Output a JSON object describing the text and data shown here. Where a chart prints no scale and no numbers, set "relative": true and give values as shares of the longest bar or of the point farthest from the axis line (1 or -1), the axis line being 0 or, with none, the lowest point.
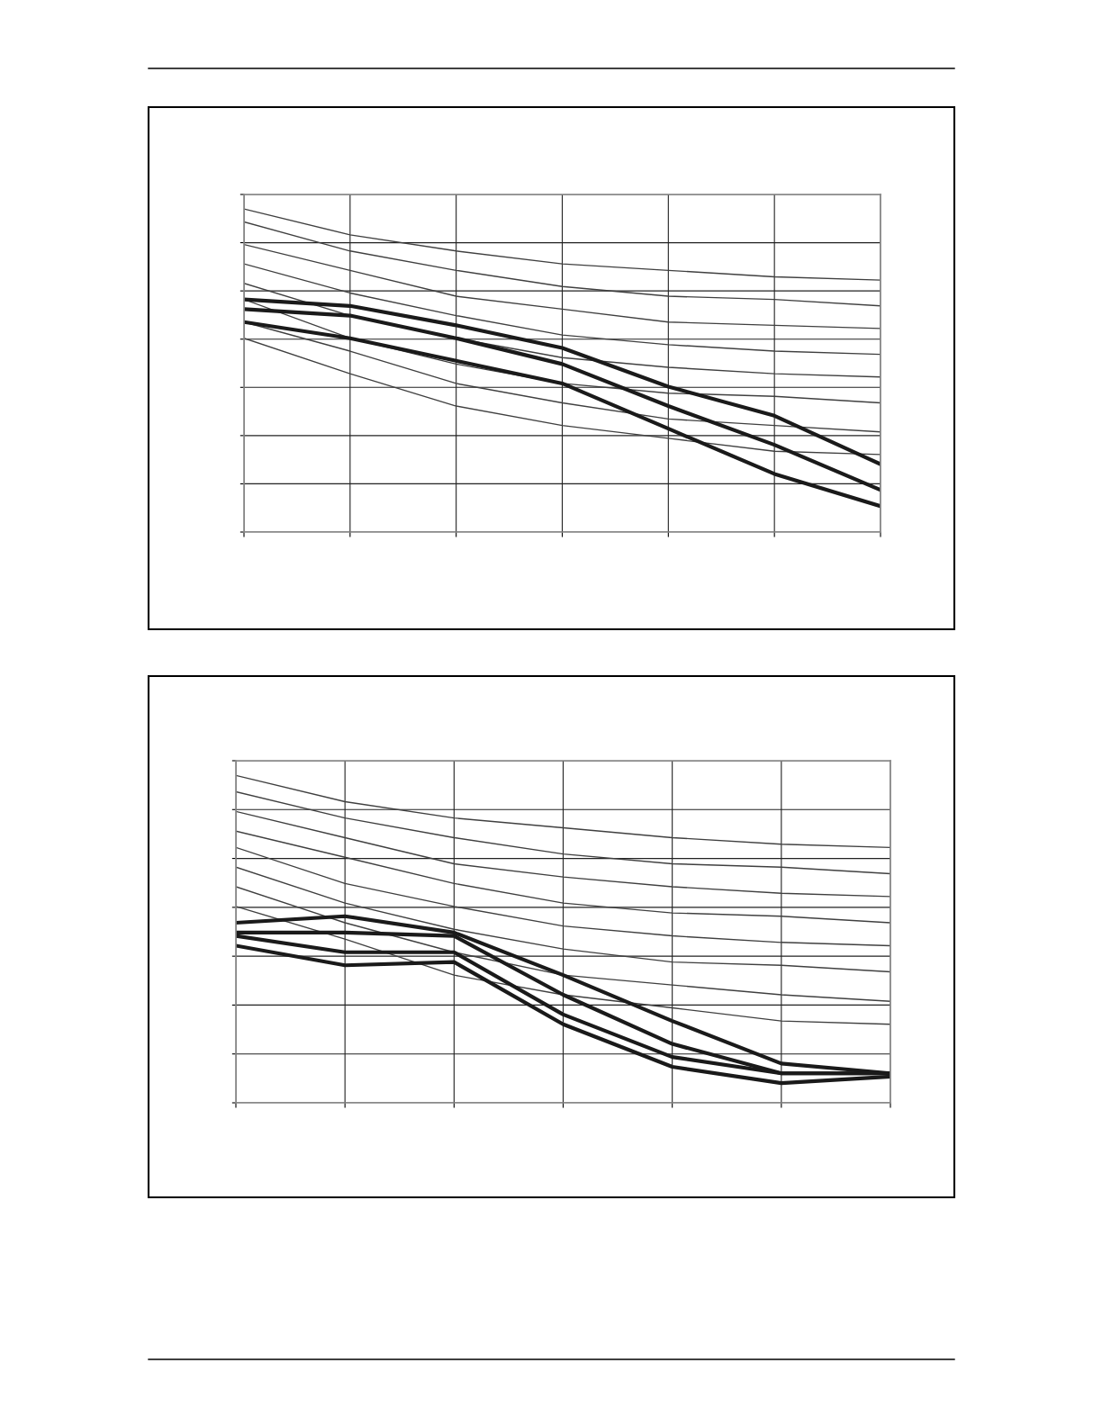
{
  "chart_data": [
    {
      "type": "line",
      "relative": true,
      "grid": true,
      "marker": "none",
      "line_style": "solid",
      "categories": [
        null,
        null,
        null,
        null,
        null,
        null,
        null
      ],
      "series": [
        {
          "color": "#404040",
          "values": [
            1.0,
            0.92,
            0.87,
            0.83,
            0.81,
            0.79,
            0.78
          ]
        },
        {
          "color": "#404040",
          "values": [
            0.96,
            0.87,
            0.81,
            0.76,
            0.73,
            0.72,
            0.7
          ]
        },
        {
          "color": "#404040",
          "values": [
            0.89,
            0.81,
            0.73,
            0.69,
            0.65,
            0.64,
            0.63
          ]
        },
        {
          "color": "#404040",
          "values": [
            0.83,
            0.74,
            0.67,
            0.61,
            0.58,
            0.56,
            0.55
          ]
        },
        {
          "color": "#404040",
          "values": [
            0.77,
            0.67,
            0.6,
            0.54,
            0.51,
            0.49,
            0.48
          ]
        },
        {
          "color": "#404040",
          "values": [
            0.72,
            0.6,
            0.52,
            0.46,
            0.43,
            0.42,
            0.4
          ]
        },
        {
          "color": "#404040",
          "values": [
            0.65,
            0.56,
            0.46,
            0.4,
            0.35,
            0.33,
            0.31
          ]
        },
        {
          "color": "#404040",
          "values": [
            0.6,
            0.49,
            0.39,
            0.33,
            0.29,
            0.25,
            0.24
          ]
        },
        {
          "color": "#1a1a1a",
          "values": [
            0.72,
            0.7,
            0.64,
            0.57,
            0.45,
            0.36,
            0.21
          ]
        },
        {
          "color": "#1a1a1a",
          "values": [
            0.69,
            0.67,
            0.6,
            0.52,
            0.39,
            0.27,
            0.13
          ]
        },
        {
          "color": "#1a1a1a",
          "values": [
            0.65,
            0.6,
            0.53,
            0.46,
            0.32,
            0.18,
            0.08
          ]
        }
      ]
    },
    {
      "type": "line",
      "relative": true,
      "grid": true,
      "marker": "none",
      "line_style": "solid",
      "categories": [
        null,
        null,
        null,
        null,
        null,
        null,
        null
      ],
      "series": [
        {
          "color": "#404040",
          "values": [
            1.0,
            0.92,
            0.87,
            0.84,
            0.81,
            0.79,
            0.78
          ]
        },
        {
          "color": "#404040",
          "values": [
            0.95,
            0.87,
            0.81,
            0.76,
            0.73,
            0.72,
            0.7
          ]
        },
        {
          "color": "#404040",
          "values": [
            0.89,
            0.81,
            0.73,
            0.69,
            0.66,
            0.64,
            0.63
          ]
        },
        {
          "color": "#404040",
          "values": [
            0.83,
            0.75,
            0.67,
            0.61,
            0.58,
            0.57,
            0.55
          ]
        },
        {
          "color": "#404040",
          "values": [
            0.78,
            0.67,
            0.6,
            0.54,
            0.51,
            0.49,
            0.48
          ]
        },
        {
          "color": "#404040",
          "values": [
            0.72,
            0.61,
            0.53,
            0.47,
            0.43,
            0.42,
            0.4
          ]
        },
        {
          "color": "#404040",
          "values": [
            0.66,
            0.55,
            0.46,
            0.39,
            0.36,
            0.33,
            0.31
          ]
        },
        {
          "color": "#404040",
          "values": [
            0.6,
            0.5,
            0.39,
            0.33,
            0.29,
            0.25,
            0.24
          ]
        },
        {
          "color": "#1a1a1a",
          "values": [
            0.55,
            0.57,
            0.52,
            0.39,
            0.25,
            0.12,
            0.09
          ]
        },
        {
          "color": "#1a1a1a",
          "values": [
            0.52,
            0.52,
            0.51,
            0.33,
            0.18,
            0.09,
            0.09
          ]
        },
        {
          "color": "#1a1a1a",
          "values": [
            0.51,
            0.46,
            0.46,
            0.27,
            0.14,
            0.09,
            0.09
          ]
        },
        {
          "color": "#1a1a1a",
          "values": [
            0.48,
            0.42,
            0.43,
            0.24,
            0.11,
            0.06,
            0.08
          ]
        }
      ]
    }
  ]
}
